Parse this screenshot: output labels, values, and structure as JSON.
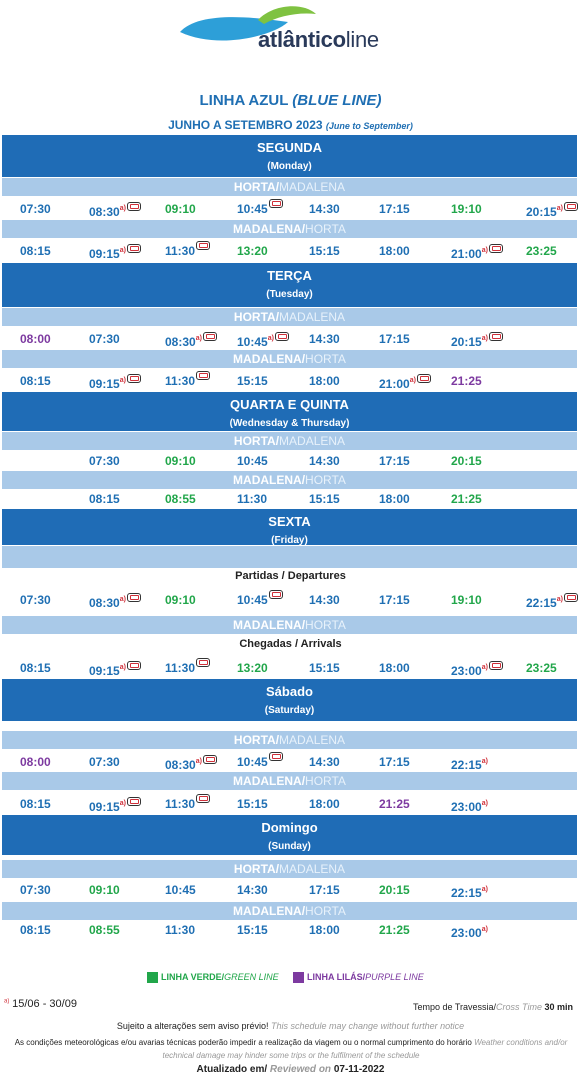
{
  "logo": {
    "brand_bold": "atlântico",
    "brand_light": "line"
  },
  "header": {
    "title_main": "LINHA AZUL",
    "title_en": "(BLUE LINE)",
    "period_main": "JUNHO A SETEMBRO 2023",
    "period_en": "(June to September)"
  },
  "routes": {
    "hm_a": "HORTA/",
    "hm_b": "MADALENA",
    "mh_a": "MADALENA/",
    "mh_b": "HORTA"
  },
  "colors": {
    "blue": "#1f6fb3",
    "green": "#21a64a",
    "purple": "#7d3aa0",
    "header_bg": "#1f6cb6",
    "route_bg": "#a9c9e8"
  },
  "schedule": {
    "segunda": {
      "name": "SEGUNDA",
      "sub": "(Monday)",
      "out": [
        [
          "07:30",
          "blue",
          0,
          0
        ],
        [
          "08:30",
          "blue",
          1,
          1
        ],
        [
          "09:10",
          "green",
          0,
          0
        ],
        [
          "10:45",
          "blue",
          0,
          1
        ],
        [
          "14:30",
          "blue",
          0,
          0
        ],
        [
          "17:15",
          "blue",
          0,
          0
        ],
        [
          "19:10",
          "green",
          0,
          0
        ],
        [
          "20:15",
          "blue",
          1,
          1
        ]
      ],
      "back": [
        [
          "08:15",
          "blue",
          0,
          0
        ],
        [
          "09:15",
          "blue",
          1,
          1
        ],
        [
          "11:30",
          "blue",
          0,
          1
        ],
        [
          "13:20",
          "green",
          0,
          0
        ],
        [
          "15:15",
          "blue",
          0,
          0
        ],
        [
          "18:00",
          "blue",
          0,
          0
        ],
        [
          "21:00",
          "blue",
          1,
          1
        ],
        [
          "23:25",
          "green",
          0,
          0
        ]
      ]
    },
    "terca": {
      "name": "TERÇA",
      "sub": "(Tuesday)",
      "out": [
        [
          "08:00",
          "purple",
          0,
          0
        ],
        [
          "07:30",
          "blue",
          0,
          0
        ],
        [
          "08:30",
          "blue",
          1,
          1
        ],
        [
          "10:45",
          "blue",
          1,
          1
        ],
        [
          "14:30",
          "blue",
          0,
          0
        ],
        [
          "17:15",
          "blue",
          0,
          0
        ],
        [
          "20:15",
          "blue",
          1,
          1
        ]
      ],
      "back": [
        [
          "08:15",
          "blue",
          0,
          0
        ],
        [
          "09:15",
          "blue",
          1,
          1
        ],
        [
          "11:30",
          "blue",
          0,
          1
        ],
        [
          "15:15",
          "blue",
          0,
          0
        ],
        [
          "18:00",
          "blue",
          0,
          0
        ],
        [
          "21:00",
          "blue",
          1,
          1
        ],
        [
          "21:25",
          "purple",
          0,
          0
        ]
      ]
    },
    "quarta": {
      "name": "QUARTA E QUINTA",
      "sub": "(Wednesday & Thursday)",
      "out": [
        [
          "07:30",
          "blue",
          0,
          0
        ],
        [
          "09:10",
          "green",
          0,
          0
        ],
        [
          "10:45",
          "blue",
          0,
          0
        ],
        [
          "14:30",
          "blue",
          0,
          0
        ],
        [
          "17:15",
          "blue",
          0,
          0
        ],
        [
          "20:15",
          "green",
          0,
          0
        ]
      ],
      "back": [
        [
          "08:15",
          "blue",
          0,
          0
        ],
        [
          "08:55",
          "green",
          0,
          0
        ],
        [
          "11:30",
          "blue",
          0,
          0
        ],
        [
          "15:15",
          "blue",
          0,
          0
        ],
        [
          "18:00",
          "blue",
          0,
          0
        ],
        [
          "21:25",
          "green",
          0,
          0
        ]
      ]
    },
    "sexta": {
      "name": "SEXTA",
      "sub": "(Friday)",
      "departures_label": "Partidas / Departures",
      "arrivals_label": "Chegadas / Arrivals",
      "out": [
        [
          "07:30",
          "blue",
          0,
          0
        ],
        [
          "08:30",
          "blue",
          1,
          1
        ],
        [
          "09:10",
          "green",
          0,
          0
        ],
        [
          "10:45",
          "blue",
          0,
          1
        ],
        [
          "14:30",
          "blue",
          0,
          0
        ],
        [
          "17:15",
          "blue",
          0,
          0
        ],
        [
          "19:10",
          "green",
          0,
          0
        ],
        [
          "22:15",
          "blue",
          1,
          1
        ]
      ],
      "back": [
        [
          "08:15",
          "blue",
          0,
          0
        ],
        [
          "09:15",
          "blue",
          1,
          1
        ],
        [
          "11:30",
          "blue",
          0,
          1
        ],
        [
          "13:20",
          "green",
          0,
          0
        ],
        [
          "15:15",
          "blue",
          0,
          0
        ],
        [
          "18:00",
          "blue",
          0,
          0
        ],
        [
          "23:00",
          "blue",
          1,
          1
        ],
        [
          "23:25",
          "green",
          0,
          0
        ]
      ]
    },
    "sabado": {
      "name": "Sábado",
      "sub": "(Saturday)",
      "out": [
        [
          "08:00",
          "purple",
          0,
          0
        ],
        [
          "07:30",
          "blue",
          0,
          0
        ],
        [
          "08:30",
          "blue",
          1,
          1
        ],
        [
          "10:45",
          "blue",
          0,
          1
        ],
        [
          "14:30",
          "blue",
          0,
          0
        ],
        [
          "17:15",
          "blue",
          0,
          0
        ],
        [
          "22:15",
          "blue",
          1,
          0
        ]
      ],
      "back": [
        [
          "08:15",
          "blue",
          0,
          0
        ],
        [
          "09:15",
          "blue",
          1,
          1
        ],
        [
          "11:30",
          "blue",
          0,
          1
        ],
        [
          "15:15",
          "blue",
          0,
          0
        ],
        [
          "18:00",
          "blue",
          0,
          0
        ],
        [
          "21:25",
          "purple",
          0,
          0
        ],
        [
          "23:00",
          "blue",
          1,
          0
        ]
      ]
    },
    "domingo": {
      "name": "Domingo",
      "sub": "(Sunday)",
      "out": [
        [
          "07:30",
          "blue",
          0,
          0
        ],
        [
          "09:10",
          "green",
          0,
          0
        ],
        [
          "10:45",
          "blue",
          0,
          0
        ],
        [
          "14:30",
          "blue",
          0,
          0
        ],
        [
          "17:15",
          "blue",
          0,
          0
        ],
        [
          "20:15",
          "green",
          0,
          0
        ],
        [
          "22:15",
          "blue",
          1,
          0
        ]
      ],
      "back": [
        [
          "08:15",
          "blue",
          0,
          0
        ],
        [
          "08:55",
          "green",
          0,
          0
        ],
        [
          "11:30",
          "blue",
          0,
          0
        ],
        [
          "15:15",
          "blue",
          0,
          0
        ],
        [
          "18:00",
          "blue",
          0,
          0
        ],
        [
          "21:25",
          "green",
          0,
          0
        ],
        [
          "23:00",
          "blue",
          1,
          0
        ]
      ]
    }
  },
  "note_mark": "a)",
  "legend": {
    "green_a": "LINHA VERDE/",
    "green_b": "GREEN LINE",
    "purple_a": "LINHA LILÁS/",
    "purple_b": "PURPLE LINE"
  },
  "footer": {
    "season": "15/06 - 30/09",
    "crossing_a": "Tempo de Travessia/",
    "crossing_b": "Cross Time",
    "crossing_val": "30 min",
    "changes_pt": "Sujeito a alterações sem aviso prévio!",
    "changes_en": "This schedule may change without further notice",
    "weather_pt": "As condições meteorológicas e/ou avarias técnicas poderão impedir a realização da viagem ou o normal cumprimento do horário",
    "weather_en": "Weather conditions and/or technical damage may hinder some trips or the fulfilment of the schedule",
    "updated_a": "Atualizado em/",
    "updated_b": "Reviewed on",
    "updated_date": "07-11-2022"
  }
}
